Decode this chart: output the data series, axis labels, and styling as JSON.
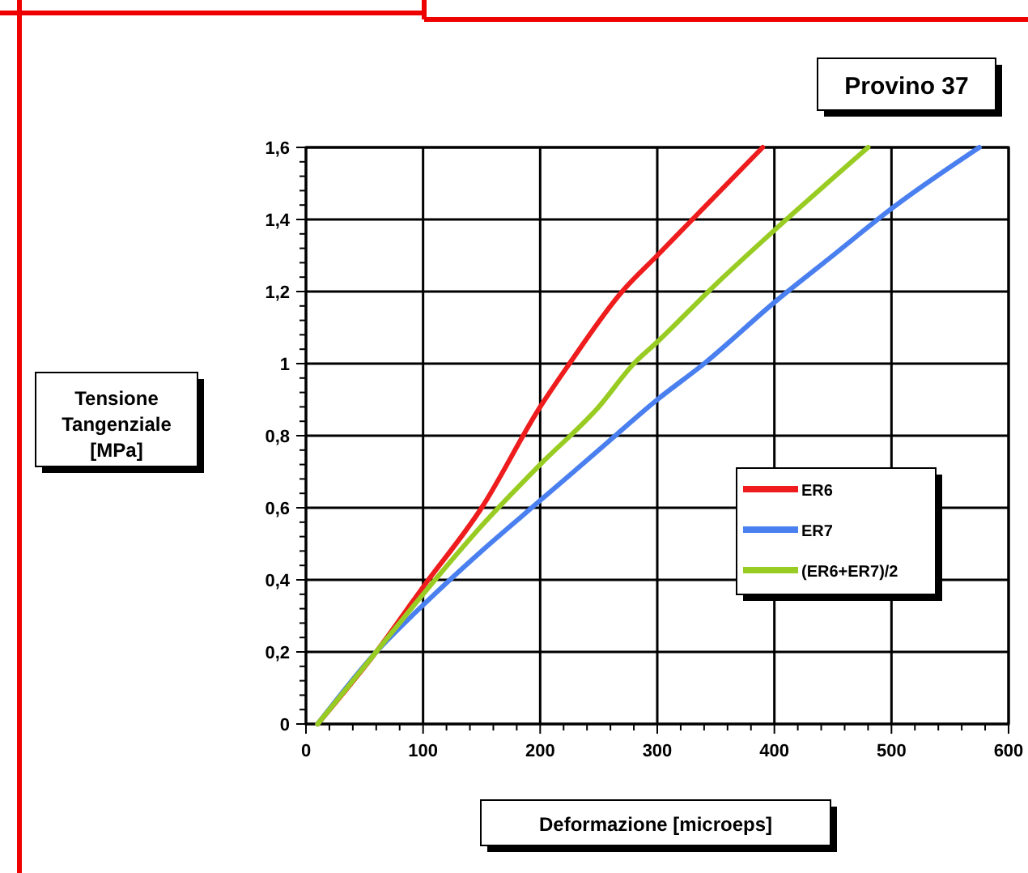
{
  "chart_data": {
    "type": "line",
    "title": "Provino 37",
    "xlabel": "Deformazione [microeps]",
    "ylabel": "Tensione Tangenziale [MPa]",
    "xlim": [
      0,
      600
    ],
    "xticks": [
      0,
      100,
      200,
      300,
      400,
      500,
      600
    ],
    "ylim": [
      0,
      1.6
    ],
    "yticks": [
      {
        "value": 0,
        "label": "0"
      },
      {
        "value": 0.2,
        "label": "0,2"
      },
      {
        "value": 0.4,
        "label": "0,4"
      },
      {
        "value": 0.6,
        "label": "0,6"
      },
      {
        "value": 0.8,
        "label": "0,8"
      },
      {
        "value": 1,
        "label": "1"
      },
      {
        "value": 1.2,
        "label": "1,2"
      },
      {
        "value": 1.4,
        "label": "1,4"
      },
      {
        "value": 1.6,
        "label": "1,6"
      }
    ],
    "grid": true,
    "legend": "right",
    "marker": "none",
    "line_style": "solid",
    "series": [
      {
        "name": "ER6",
        "color": "#ee1c1c",
        "x": [
          10,
          60,
          100,
          150,
          200,
          225,
          270,
          300,
          330,
          390
        ],
        "values": [
          0,
          0.2,
          0.38,
          0.6,
          0.88,
          1.0,
          1.2,
          1.3,
          1.4,
          1.6
        ]
      },
      {
        "name": "ER7",
        "color": "#4a7ff0",
        "x": [
          10,
          60,
          100,
          150,
          200,
          250,
          300,
          340,
          400,
          450,
          500,
          575
        ],
        "values": [
          0,
          0.2,
          0.33,
          0.48,
          0.62,
          0.76,
          0.9,
          1.0,
          1.17,
          1.3,
          1.43,
          1.6
        ]
      },
      {
        "name": "(ER6+ER7)/2",
        "color": "#99cc22",
        "x": [
          10,
          60,
          100,
          150,
          200,
          250,
          280,
          300,
          350,
          400,
          480
        ],
        "values": [
          0,
          0.2,
          0.36,
          0.55,
          0.72,
          0.88,
          1.0,
          1.06,
          1.22,
          1.37,
          1.6
        ]
      }
    ]
  }
}
